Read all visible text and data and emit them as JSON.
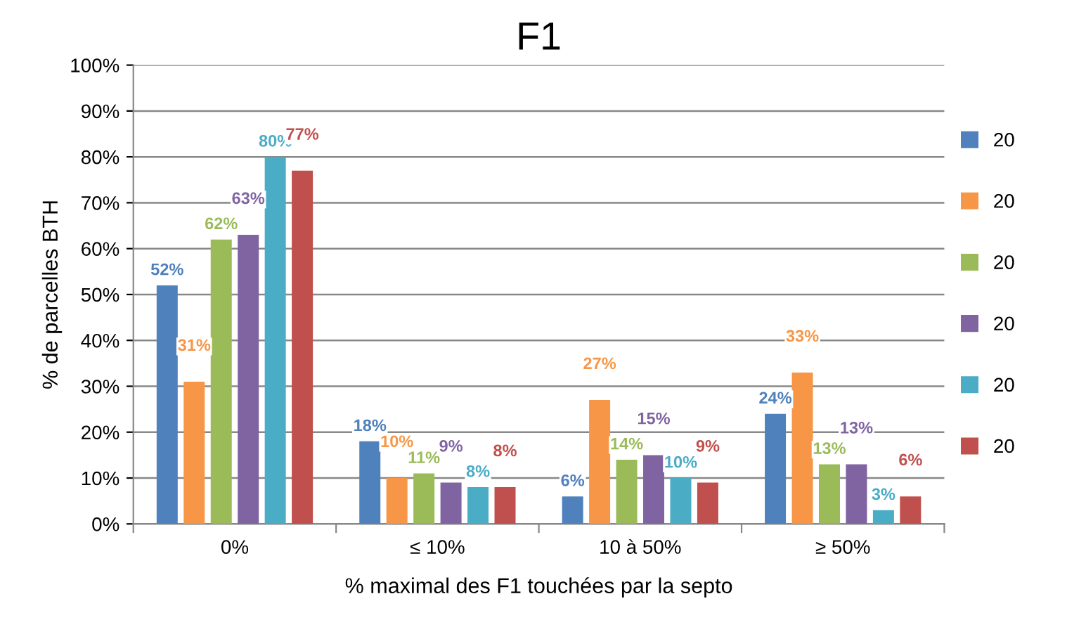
{
  "chart_data": {
    "type": "bar",
    "title": "F1",
    "xlabel": "% maximal des F1 touchées par la septo",
    "ylabel": "% de parcelles BTH",
    "categories": [
      "0%",
      "≤ 10%",
      "10 à 50%",
      "≥ 50%"
    ],
    "series": [
      {
        "name": "20",
        "color": "#4f81bd",
        "values": [
          52,
          18,
          6,
          24
        ],
        "value_labels": [
          "52%",
          "18%",
          "6%",
          "24%"
        ]
      },
      {
        "name": "20",
        "color": "#f79646",
        "values": [
          31,
          10,
          27,
          33
        ],
        "value_labels": [
          "31%",
          "10%",
          "27%",
          "33%"
        ]
      },
      {
        "name": "20",
        "color": "#9bbb59",
        "values": [
          62,
          11,
          14,
          13
        ],
        "value_labels": [
          "62%",
          "11%",
          "14%",
          "13%"
        ]
      },
      {
        "name": "20",
        "color": "#8064a2",
        "values": [
          63,
          9,
          15,
          13
        ],
        "value_labels": [
          "63%",
          "9%",
          "15%",
          "13%"
        ]
      },
      {
        "name": "20",
        "color": "#4bacc6",
        "values": [
          80,
          8,
          10,
          3
        ],
        "value_labels": [
          "80%",
          "8%",
          "10%",
          "3%"
        ]
      },
      {
        "name": "20",
        "color": "#c0504d",
        "values": [
          77,
          8,
          9,
          6
        ],
        "value_labels": [
          "77%",
          "8%",
          "9%",
          "6%"
        ]
      }
    ],
    "ylim": [
      0,
      100
    ],
    "yticks": [
      {
        "value": 0,
        "label": "0%"
      },
      {
        "value": 10,
        "label": "10%"
      },
      {
        "value": 20,
        "label": "20%"
      },
      {
        "value": 30,
        "label": "30%"
      },
      {
        "value": 40,
        "label": "40%"
      },
      {
        "value": 50,
        "label": "50%"
      },
      {
        "value": 60,
        "label": "60%"
      },
      {
        "value": 70,
        "label": "70%"
      },
      {
        "value": 80,
        "label": "80%"
      },
      {
        "value": 90,
        "label": "90%"
      },
      {
        "value": 100,
        "label": "100%"
      }
    ],
    "grid": "y",
    "legend": "right"
  }
}
